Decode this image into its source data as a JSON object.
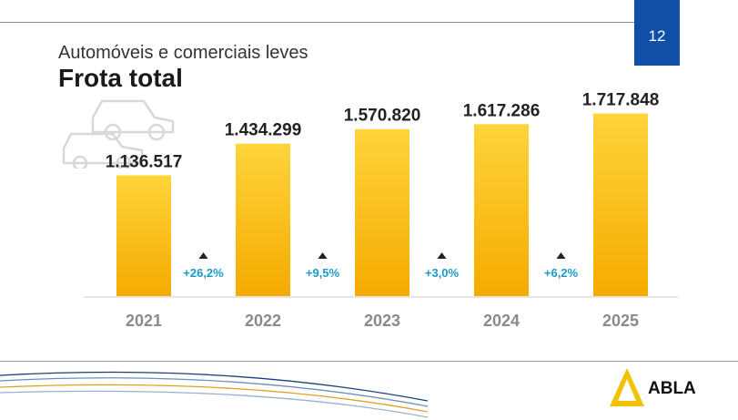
{
  "header": {
    "subtitle": "Automóveis e comerciais leves",
    "title": "Frota total",
    "page_number": "12"
  },
  "logo": {
    "text": "ABLA"
  },
  "icons": {
    "decoration": "car-outline-icon",
    "change": "up-triangle-icon"
  },
  "colors": {
    "bar_top": "#ffd43b",
    "bar_bottom": "#f5ab00",
    "growth_text": "#1a9ac8",
    "year_label": "#8a8a8a",
    "value_label": "#222222",
    "accent_blue": "#0f4fa8"
  },
  "chart_data": {
    "type": "bar",
    "title": "Frota total",
    "subtitle": "Automóveis e comerciais leves",
    "categories": [
      "2021",
      "2022",
      "2023",
      "2024",
      "2025"
    ],
    "values": [
      1136517,
      1434299,
      1570820,
      1617286,
      1717848
    ],
    "value_labels": [
      "1.136.517",
      "1.434.299",
      "1.570.820",
      "1.617.286",
      "1.717.848"
    ],
    "growth": [
      "+26,2%",
      "+9,5%",
      "+3,0%",
      "+6,2%"
    ],
    "xlabel": "",
    "ylabel": "",
    "ylim": [
      0,
      1800000
    ],
    "grid": false
  }
}
